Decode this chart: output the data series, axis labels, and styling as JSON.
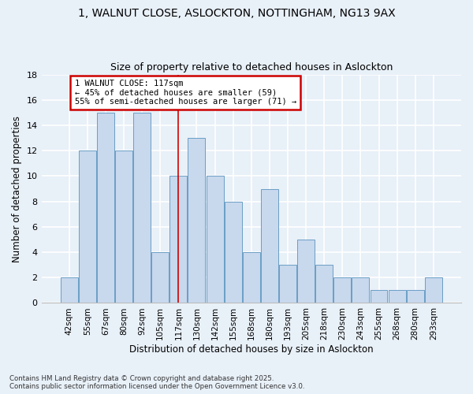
{
  "title": "1, WALNUT CLOSE, ASLOCKTON, NOTTINGHAM, NG13 9AX",
  "subtitle": "Size of property relative to detached houses in Aslockton",
  "xlabel": "Distribution of detached houses by size in Aslockton",
  "ylabel": "Number of detached properties",
  "categories": [
    "42sqm",
    "55sqm",
    "67sqm",
    "80sqm",
    "92sqm",
    "105sqm",
    "117sqm",
    "130sqm",
    "142sqm",
    "155sqm",
    "168sqm",
    "180sqm",
    "193sqm",
    "205sqm",
    "218sqm",
    "230sqm",
    "243sqm",
    "255sqm",
    "268sqm",
    "280sqm",
    "293sqm"
  ],
  "values": [
    2,
    12,
    15,
    12,
    15,
    4,
    10,
    13,
    10,
    8,
    4,
    9,
    3,
    5,
    3,
    2,
    2,
    1,
    1,
    1,
    2
  ],
  "bar_color": "#c8d8ed",
  "bar_edge_color": "#6a9ec5",
  "ref_line_index": 6,
  "annotation_title": "1 WALNUT CLOSE: 117sqm",
  "annotation_line1": "← 45% of detached houses are smaller (59)",
  "annotation_line2": "55% of semi-detached houses are larger (71) →",
  "annotation_box_color": "#ffffff",
  "annotation_box_edge": "#cc0000",
  "ref_line_color": "#cc0000",
  "ylim": [
    0,
    18
  ],
  "yticks": [
    0,
    2,
    4,
    6,
    8,
    10,
    12,
    14,
    16,
    18
  ],
  "footer1": "Contains HM Land Registry data © Crown copyright and database right 2025.",
  "footer2": "Contains public sector information licensed under the Open Government Licence v3.0.",
  "bg_color": "#e8f0f8",
  "plot_bg_color": "#e8f0f8",
  "title_fontsize": 10,
  "subtitle_fontsize": 9
}
